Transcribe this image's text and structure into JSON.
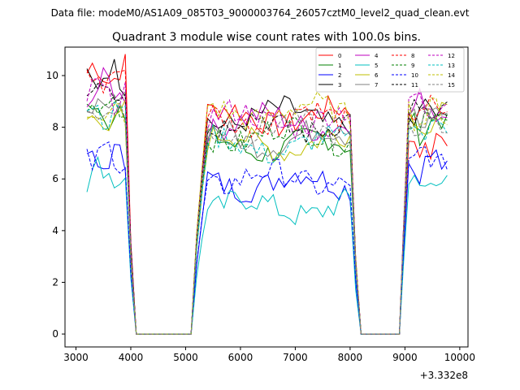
{
  "chart_data": {
    "type": "line",
    "suptitle": "Data file: modeM0/AS1A09_085T03_9000003764_26057cztM0_level2_quad_clean.evt",
    "title": "Quadrant 3 module wise count rates with 100.0s bins.",
    "xlabel": "",
    "ylabel": "",
    "x_offset_label": "+3.332e8",
    "xlim": [
      2800,
      10150
    ],
    "ylim": [
      -0.5,
      11.1
    ],
    "x_ticks": [
      3000,
      4000,
      5000,
      6000,
      7000,
      8000,
      9000,
      10000
    ],
    "y_ticks": [
      0,
      2,
      4,
      6,
      8,
      10
    ],
    "x_tick_labels": [
      "3000",
      "4000",
      "5000",
      "6000",
      "7000",
      "8000",
      "9000",
      "10000"
    ],
    "y_tick_labels": [
      "0",
      "2",
      "4",
      "6",
      "8",
      "10"
    ],
    "legend_placement": "top-right",
    "grid": false,
    "segments": [
      {
        "x0": 3200,
        "x1": 4000,
        "zero_until": 5100
      },
      {
        "x0": 5200,
        "x1": 8100,
        "zero_until": 8900
      },
      {
        "x0": 8970,
        "x1": 9800
      }
    ],
    "series": [
      {
        "name": "0",
        "color": "#ff0000",
        "dash": "solid",
        "levels": [
          10.1,
          8.4,
          7.3
        ]
      },
      {
        "name": "1",
        "color": "#008000",
        "dash": "solid",
        "levels": [
          8.5,
          7.3,
          8.1
        ]
      },
      {
        "name": "2",
        "color": "#0000ff",
        "dash": "solid",
        "levels": [
          6.7,
          5.9,
          6.6
        ]
      },
      {
        "name": "3",
        "color": "#000000",
        "dash": "solid",
        "levels": [
          10.0,
          8.4,
          8.5
        ]
      },
      {
        "name": "4",
        "color": "#bf00bf",
        "dash": "solid",
        "levels": [
          9.5,
          8.2,
          8.8
        ]
      },
      {
        "name": "5",
        "color": "#00bfbf",
        "dash": "solid",
        "levels": [
          6.2,
          4.9,
          5.8
        ]
      },
      {
        "name": "6",
        "color": "#bfbf00",
        "dash": "solid",
        "levels": [
          8.3,
          7.4,
          8.2
        ]
      },
      {
        "name": "7",
        "color": "#808080",
        "dash": "solid",
        "levels": [
          8.7,
          7.6,
          8.3
        ]
      },
      {
        "name": "8",
        "color": "#ff0000",
        "dash": "dashed",
        "levels": [
          9.9,
          8.4,
          8.6
        ]
      },
      {
        "name": "9",
        "color": "#008000",
        "dash": "dashed",
        "levels": [
          8.8,
          7.7,
          8.4
        ]
      },
      {
        "name": "10",
        "color": "#0000ff",
        "dash": "dashed",
        "levels": [
          6.9,
          6.0,
          6.8
        ]
      },
      {
        "name": "11",
        "color": "#000000",
        "dash": "dashed",
        "levels": [
          9.6,
          8.1,
          8.5
        ]
      },
      {
        "name": "12",
        "color": "#bf00bf",
        "dash": "dashed",
        "levels": [
          9.3,
          8.3,
          8.9
        ]
      },
      {
        "name": "13",
        "color": "#00bfbf",
        "dash": "dashed",
        "levels": [
          8.6,
          7.3,
          8.0
        ]
      },
      {
        "name": "14",
        "color": "#bfbf00",
        "dash": "dashed",
        "levels": [
          8.4,
          8.6,
          8.5
        ]
      },
      {
        "name": "15",
        "color": "#808080",
        "dash": "dashed",
        "levels": [
          8.6,
          7.9,
          8.3
        ]
      }
    ]
  }
}
